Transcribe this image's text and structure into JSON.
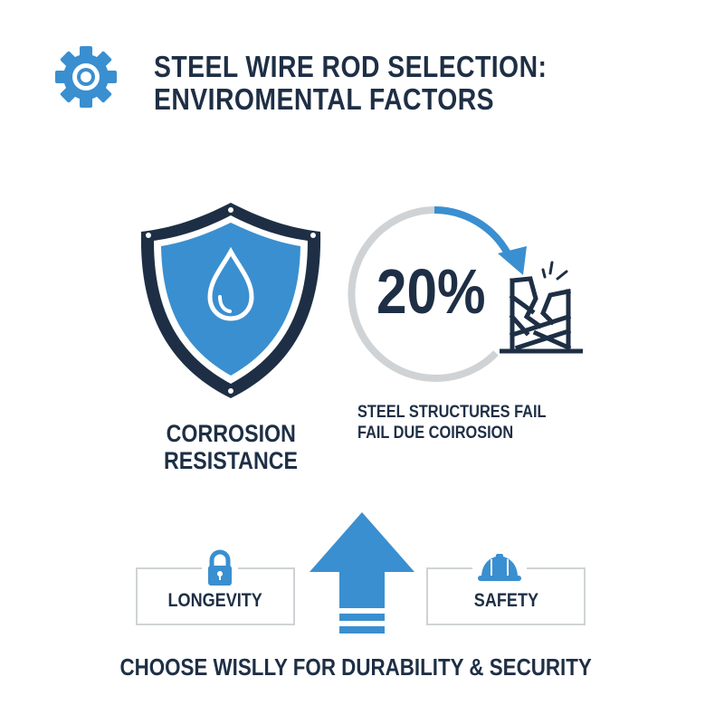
{
  "header": {
    "icon": "gear-icon",
    "title_line1": "STEEL WIRE ROD SELECTION:",
    "title_line2": "ENVIROMENTAL FACTORS"
  },
  "corrosion": {
    "icon": "shield-water-drop-icon",
    "label_line1": "CORROSION",
    "label_line2": "RESISTANCE"
  },
  "statistic": {
    "value": "20%",
    "progress_percent": 20,
    "icon": "broken-structure-icon",
    "text_line1": "STEEL STRUCTURES FAIL",
    "text_line2": "FAIL DUE COIROSION"
  },
  "benefits": [
    {
      "label": "LONGEVITY",
      "icon": "lock-icon"
    },
    {
      "label": "SAFETY",
      "icon": "hard-hat-icon"
    }
  ],
  "center_icon": "up-arrow-icon",
  "tagline": "CHOOSE WISLLY FOR DURABILITY & SECURITY",
  "colors": {
    "accent": "#3a8fd0",
    "navy": "#1e2f45",
    "gray": "#cfd3d6"
  }
}
